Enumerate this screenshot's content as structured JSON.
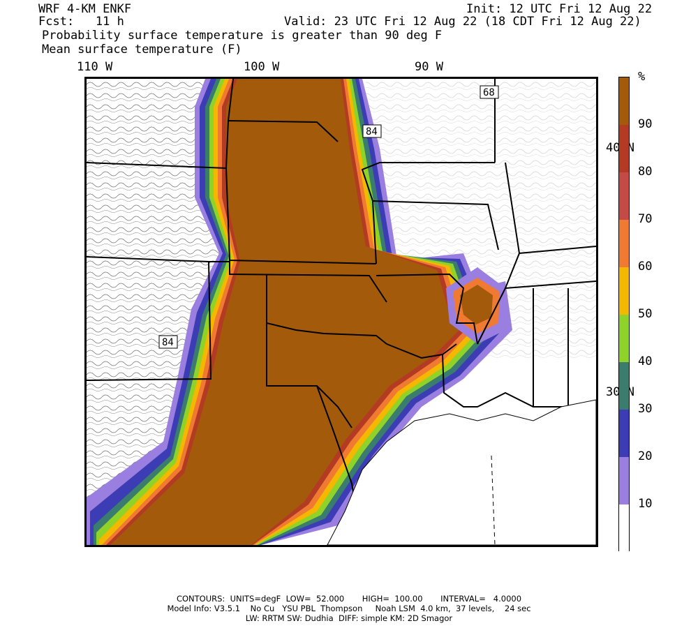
{
  "header": {
    "model": "WRF 4-KM ENKF",
    "init": "Init: 12 UTC Fri 12 Aug 22",
    "fcst": "Fcst:   11 h",
    "valid": "Valid: 23 UTC Fri 12 Aug 22 (18 CDT Fri 12 Aug 22)",
    "field1": "Probability surface temperature is greater than 90 deg F",
    "field2": "Mean surface temperature (F)"
  },
  "axes": {
    "lon_labels": [
      "110 W",
      "100 W",
      "90 W"
    ],
    "lat_labels": [
      "40 N",
      "30 N"
    ]
  },
  "contour_labels": [
    "84",
    "84",
    "68"
  ],
  "colorbar": {
    "unit": "%",
    "labels": [
      "90",
      "80",
      "70",
      "60",
      "50",
      "40",
      "30",
      "20",
      "10"
    ],
    "colors": [
      "#a35a0a",
      "#b43b23",
      "#c44a46",
      "#f07a32",
      "#f5b800",
      "#8fd22a",
      "#3a7d6e",
      "#3c3cb4",
      "#9a7ee0",
      "#ffffff"
    ]
  },
  "footer": {
    "line1": "CONTOURS:  UNITS=degF  LOW=  52.000       HIGH=  100.00       INTERVAL=   4.0000",
    "line2": "Model Info: V3.5.1    No Cu   YSU PBL  Thompson     Noah LSM  4.0 km,  37 levels,    24 sec",
    "line3": "LW: RRTM SW: Dudhia  DIFF: simple KM: 2D Smagor"
  }
}
